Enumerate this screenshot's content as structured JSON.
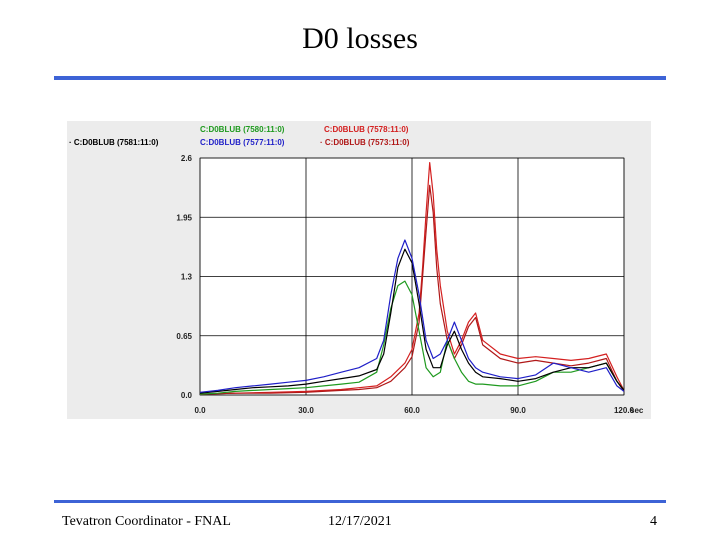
{
  "slide": {
    "title": "D0 losses",
    "footer_left": "Tevatron Coordinator - FNAL",
    "footer_center": "12/17/2021",
    "page_number": "4"
  },
  "colors": {
    "rule": "#3d63d6",
    "plot_background": "#ffffff",
    "panel_background": "#ececec",
    "grid": "#000000"
  },
  "chart_data": {
    "type": "line",
    "title": "",
    "xlabel": "sec",
    "ylabel": "",
    "xlim": [
      0,
      120
    ],
    "ylim": [
      0,
      2.6
    ],
    "x_ticks": [
      "0.0",
      "30.0",
      "60.0",
      "90.0",
      "120.0"
    ],
    "y_ticks": [
      "0.0",
      "0.65",
      "1.3",
      "1.95",
      "2.6"
    ],
    "grid": true,
    "legend_position": "top",
    "series": [
      {
        "name": "C:D0BLUB (7581:11:0)",
        "color": "#000000",
        "x": [
          0,
          5,
          10,
          15,
          20,
          25,
          30,
          35,
          40,
          45,
          50,
          52,
          54,
          56,
          58,
          60,
          62,
          64,
          66,
          68,
          70,
          72,
          74,
          76,
          78,
          80,
          85,
          90,
          95,
          100,
          105,
          110,
          115,
          118,
          120
        ],
        "y": [
          0.02,
          0.04,
          0.06,
          0.08,
          0.09,
          0.1,
          0.12,
          0.15,
          0.18,
          0.21,
          0.28,
          0.45,
          0.9,
          1.4,
          1.6,
          1.45,
          1.0,
          0.5,
          0.3,
          0.3,
          0.55,
          0.7,
          0.5,
          0.35,
          0.25,
          0.2,
          0.18,
          0.15,
          0.18,
          0.25,
          0.3,
          0.3,
          0.35,
          0.15,
          0.05
        ]
      },
      {
        "name": "C:D0BLUB (7577:11:0)",
        "color": "#1f1fc8",
        "x": [
          0,
          5,
          10,
          15,
          20,
          25,
          30,
          35,
          40,
          45,
          50,
          52,
          54,
          56,
          58,
          60,
          62,
          64,
          66,
          68,
          70,
          72,
          74,
          76,
          78,
          80,
          85,
          90,
          95,
          100,
          105,
          110,
          115,
          118,
          120
        ],
        "y": [
          0.03,
          0.05,
          0.08,
          0.1,
          0.12,
          0.14,
          0.16,
          0.2,
          0.25,
          0.3,
          0.4,
          0.6,
          1.1,
          1.5,
          1.7,
          1.5,
          1.1,
          0.6,
          0.4,
          0.45,
          0.6,
          0.8,
          0.6,
          0.4,
          0.3,
          0.25,
          0.2,
          0.18,
          0.22,
          0.35,
          0.3,
          0.25,
          0.3,
          0.1,
          0.04
        ]
      },
      {
        "name": "C:D0BLUB (7580:11:0)",
        "color": "#1f9a1f",
        "x": [
          0,
          5,
          10,
          15,
          20,
          25,
          30,
          35,
          40,
          45,
          50,
          52,
          54,
          56,
          58,
          60,
          62,
          64,
          66,
          68,
          70,
          72,
          74,
          76,
          78,
          80,
          85,
          90,
          95,
          100,
          105,
          110,
          115,
          118,
          120
        ],
        "y": [
          0.01,
          0.02,
          0.04,
          0.05,
          0.06,
          0.07,
          0.08,
          0.1,
          0.12,
          0.14,
          0.25,
          0.55,
          0.95,
          1.2,
          1.25,
          1.1,
          0.7,
          0.3,
          0.2,
          0.25,
          0.6,
          0.4,
          0.25,
          0.15,
          0.12,
          0.12,
          0.1,
          0.1,
          0.15,
          0.25,
          0.25,
          0.3,
          0.35,
          0.15,
          0.05
        ]
      },
      {
        "name": "C:D0BLUB (7578:11:0)",
        "color": "#d42020",
        "x": [
          0,
          10,
          20,
          30,
          40,
          45,
          50,
          54,
          58,
          60,
          62,
          63,
          64,
          65,
          66,
          67,
          68,
          70,
          72,
          74,
          76,
          78,
          80,
          85,
          90,
          95,
          100,
          105,
          110,
          115,
          118,
          120
        ],
        "y": [
          0.01,
          0.02,
          0.03,
          0.04,
          0.06,
          0.08,
          0.1,
          0.2,
          0.35,
          0.5,
          0.9,
          1.4,
          2.0,
          2.55,
          2.2,
          1.6,
          1.2,
          0.7,
          0.45,
          0.6,
          0.8,
          0.9,
          0.6,
          0.45,
          0.4,
          0.42,
          0.4,
          0.38,
          0.4,
          0.45,
          0.2,
          0.05
        ]
      },
      {
        "name": "C:D0BLUB (7573:11:0)",
        "color": "#b01818",
        "x": [
          0,
          10,
          20,
          30,
          40,
          45,
          50,
          54,
          58,
          60,
          62,
          63,
          64,
          65,
          66,
          67,
          68,
          70,
          72,
          74,
          76,
          78,
          80,
          85,
          90,
          95,
          100,
          105,
          110,
          115,
          118,
          120
        ],
        "y": [
          0.01,
          0.02,
          0.02,
          0.03,
          0.05,
          0.06,
          0.08,
          0.15,
          0.3,
          0.42,
          0.8,
          1.3,
          1.8,
          2.3,
          2.0,
          1.4,
          1.0,
          0.6,
          0.4,
          0.55,
          0.75,
          0.85,
          0.55,
          0.4,
          0.35,
          0.38,
          0.35,
          0.32,
          0.35,
          0.4,
          0.15,
          0.04
        ]
      }
    ]
  }
}
